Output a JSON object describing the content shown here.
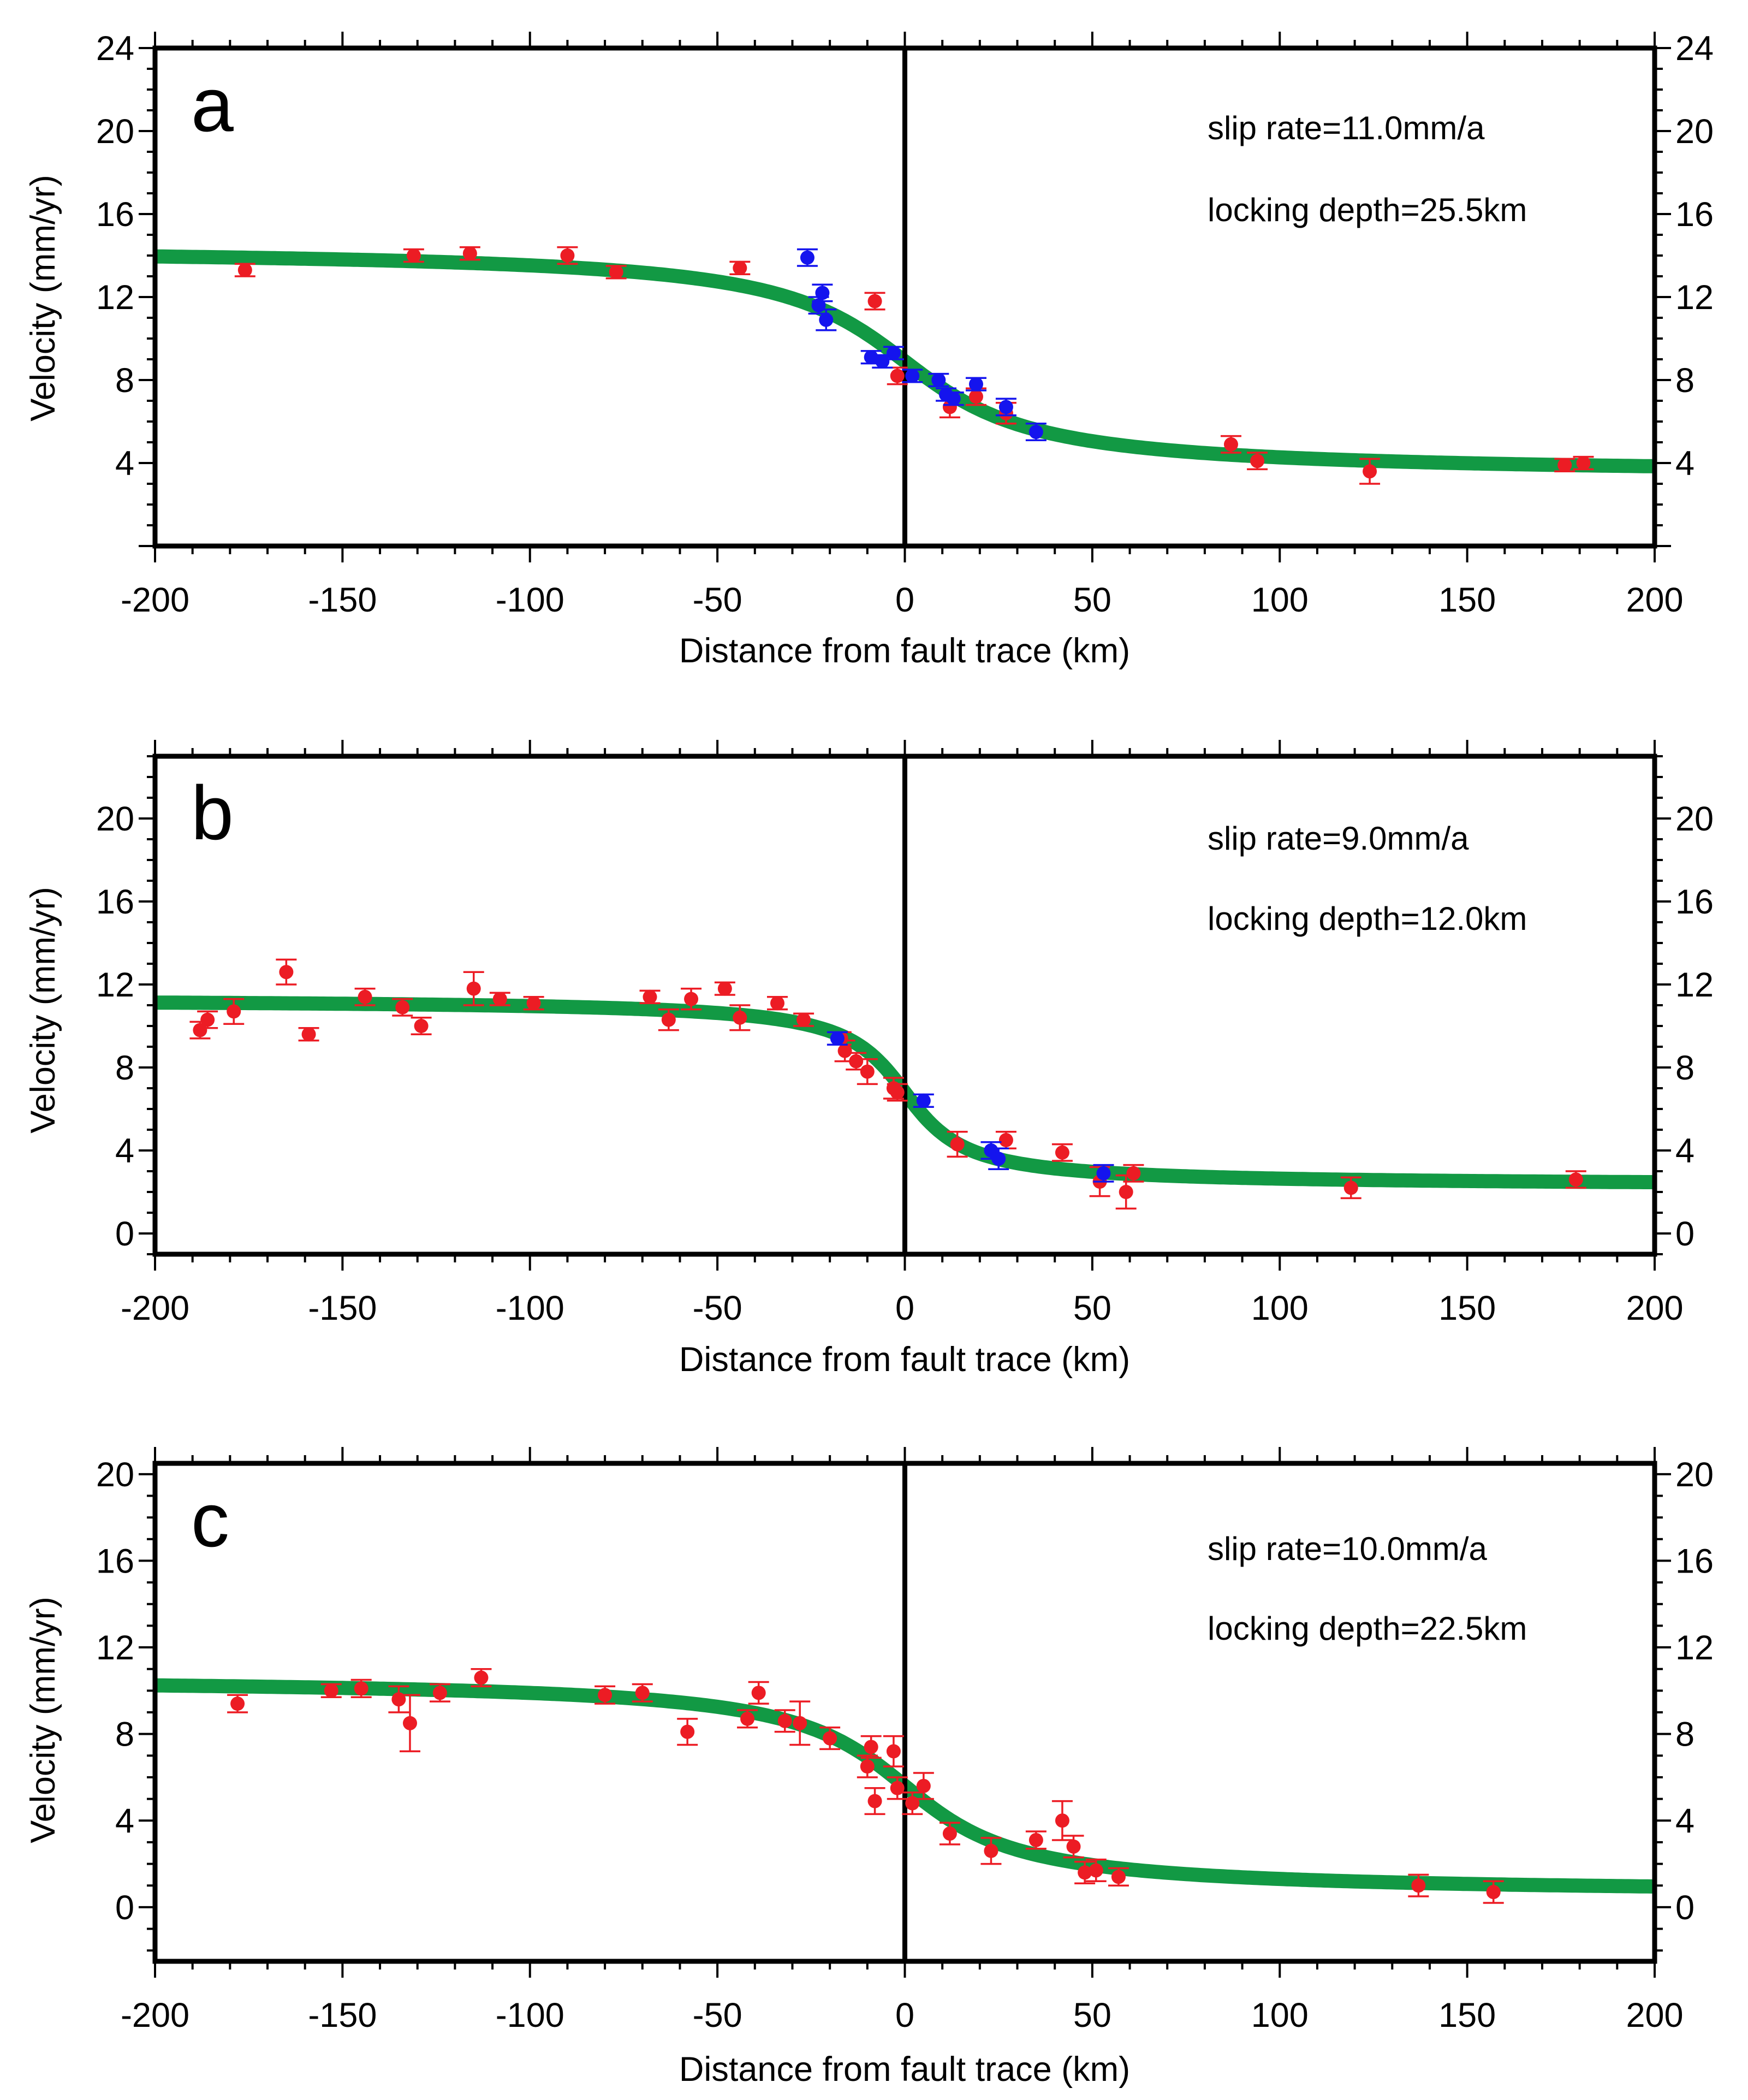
{
  "figure": {
    "x_tick_labels": [
      "-200",
      "-150",
      "-100",
      "-50",
      "0",
      "50",
      "100",
      "150",
      "200"
    ]
  },
  "chart_data": [
    {
      "type": "scatter",
      "panel": "a",
      "xlabel": "Distance from fault trace (km)",
      "ylabel": "Velocity (mm/yr)",
      "xlim": [
        -200,
        200
      ],
      "ylim": [
        0,
        24
      ],
      "xticks": [
        -200,
        -150,
        -100,
        -50,
        0,
        50,
        100,
        150,
        200
      ],
      "yticks": [
        4,
        8,
        12,
        16,
        20,
        24
      ],
      "y_tick_labels": [
        "4",
        "8",
        "12",
        "16",
        "20",
        "24"
      ],
      "annotations": [
        "slip rate=11.0mm/a",
        "locking depth=25.5km"
      ],
      "model": {
        "name": "Model fit",
        "color": "#129944",
        "slip_rate": 11.0,
        "locking_depth": 25.5,
        "offset": 8.9
      },
      "series": [
        {
          "name": "Red stations",
          "color": "#ec1c24",
          "points": [
            [
              -176,
              13.3,
              0.3
            ],
            [
              -131,
              14.0,
              0.3
            ],
            [
              -116,
              14.1,
              0.3
            ],
            [
              -90,
              14.0,
              0.4
            ],
            [
              -77,
              13.2,
              0.3
            ],
            [
              -44,
              13.4,
              0.3
            ],
            [
              -8,
              11.8,
              0.4
            ],
            [
              -2,
              8.2,
              0.4
            ],
            [
              12,
              6.7,
              0.5
            ],
            [
              19,
              7.2,
              0.4
            ],
            [
              27,
              6.4,
              0.5
            ],
            [
              87,
              4.9,
              0.4
            ],
            [
              94,
              4.1,
              0.4
            ],
            [
              124,
              3.6,
              0.6
            ],
            [
              176,
              3.9,
              0.3
            ],
            [
              181,
              4.0,
              0.3
            ]
          ]
        },
        {
          "name": "Blue stations",
          "color": "#1414ee",
          "points": [
            [
              -26,
              13.9,
              0.4
            ],
            [
              -23,
              11.6,
              0.4
            ],
            [
              -22,
              12.2,
              0.4
            ],
            [
              -21,
              10.9,
              0.5
            ],
            [
              -9,
              9.1,
              0.3
            ],
            [
              -6,
              8.9,
              0.3
            ],
            [
              -3,
              9.3,
              0.3
            ],
            [
              2,
              8.2,
              0.3
            ],
            [
              9,
              8.0,
              0.3
            ],
            [
              11,
              7.3,
              0.3
            ],
            [
              13,
              7.1,
              0.3
            ],
            [
              19,
              7.8,
              0.3
            ],
            [
              27,
              6.7,
              0.4
            ],
            [
              35,
              5.5,
              0.4
            ]
          ]
        }
      ]
    },
    {
      "type": "scatter",
      "panel": "b",
      "xlabel": "Distance from fault trace (km)",
      "ylabel": "Velocity (mm/yr)",
      "xlim": [
        -200,
        200
      ],
      "ylim": [
        -1,
        23
      ],
      "xticks": [
        -200,
        -150,
        -100,
        -50,
        0,
        50,
        100,
        150,
        200
      ],
      "yticks": [
        0,
        4,
        8,
        12,
        16,
        20
      ],
      "y_tick_labels": [
        "0",
        "4",
        "8",
        "12",
        "16",
        "20"
      ],
      "annotations": [
        "slip rate=9.0mm/a",
        "locking depth=12.0km"
      ],
      "model": {
        "name": "Model fit",
        "color": "#129944",
        "slip_rate": 9.0,
        "locking_depth": 12.0,
        "offset": 6.8
      },
      "series": [
        {
          "name": "Red stations",
          "color": "#ec1c24",
          "points": [
            [
              -188,
              9.8,
              0.4
            ],
            [
              -186,
              10.3,
              0.4
            ],
            [
              -179,
              10.7,
              0.6
            ],
            [
              -165,
              12.6,
              0.6
            ],
            [
              -159,
              9.6,
              0.3
            ],
            [
              -144,
              11.4,
              0.4
            ],
            [
              -134,
              10.9,
              0.4
            ],
            [
              -129,
              10.0,
              0.4
            ],
            [
              -115,
              11.8,
              0.8
            ],
            [
              -108,
              11.3,
              0.3
            ],
            [
              -99,
              11.1,
              0.3
            ],
            [
              -68,
              11.4,
              0.3
            ],
            [
              -63,
              10.3,
              0.5
            ],
            [
              -57,
              11.3,
              0.5
            ],
            [
              -48,
              11.8,
              0.3
            ],
            [
              -44,
              10.4,
              0.6
            ],
            [
              -34,
              11.1,
              0.3
            ],
            [
              -27,
              10.3,
              0.3
            ],
            [
              -17,
              9.4,
              0.3
            ],
            [
              -16,
              8.8,
              0.5
            ],
            [
              -13,
              8.3,
              0.4
            ],
            [
              -10,
              7.8,
              0.6
            ],
            [
              -3,
              7.0,
              0.5
            ],
            [
              -2,
              6.8,
              0.4
            ],
            [
              14,
              4.3,
              0.6
            ],
            [
              27,
              4.5,
              0.4
            ],
            [
              42,
              3.9,
              0.4
            ],
            [
              52,
              2.5,
              0.7
            ],
            [
              59,
              2.0,
              0.8
            ],
            [
              61,
              2.9,
              0.4
            ],
            [
              119,
              2.2,
              0.5
            ],
            [
              179,
              2.6,
              0.4
            ]
          ]
        },
        {
          "name": "Blue stations",
          "color": "#1414ee",
          "points": [
            [
              -18,
              9.4,
              0.3
            ],
            [
              5,
              6.4,
              0.3
            ],
            [
              23,
              4.0,
              0.4
            ],
            [
              25,
              3.6,
              0.5
            ],
            [
              53,
              2.9,
              0.4
            ]
          ]
        }
      ]
    },
    {
      "type": "scatter",
      "panel": "c",
      "xlabel": "Distance from fault trace (km)",
      "ylabel": "Velocity (mm/yr)",
      "xlim": [
        -200,
        200
      ],
      "ylim": [
        -2.5,
        20.5
      ],
      "xticks": [
        -200,
        -150,
        -100,
        -50,
        0,
        50,
        100,
        150,
        200
      ],
      "yticks": [
        0,
        4,
        8,
        12,
        16,
        20
      ],
      "y_tick_labels": [
        "0",
        "4",
        "8",
        "12",
        "16",
        "20"
      ],
      "annotations": [
        "slip rate=10.0mm/a",
        "locking depth=22.5km"
      ],
      "model": {
        "name": "Model fit",
        "color": "#129944",
        "slip_rate": 10.0,
        "locking_depth": 22.5,
        "offset": 5.6
      },
      "series": [
        {
          "name": "Red stations",
          "color": "#ec1c24",
          "points": [
            [
              -178,
              9.4,
              0.4
            ],
            [
              -153,
              10.0,
              0.3
            ],
            [
              -145,
              10.1,
              0.4
            ],
            [
              -135,
              9.6,
              0.6
            ],
            [
              -132,
              8.5,
              1.3
            ],
            [
              -124,
              9.9,
              0.4
            ],
            [
              -113,
              10.6,
              0.4
            ],
            [
              -80,
              9.8,
              0.4
            ],
            [
              -70,
              9.9,
              0.4
            ],
            [
              -58,
              8.1,
              0.6
            ],
            [
              -42,
              8.7,
              0.4
            ],
            [
              -39,
              9.9,
              0.5
            ],
            [
              -32,
              8.6,
              0.5
            ],
            [
              -28,
              8.5,
              1.0
            ],
            [
              -20,
              7.8,
              0.5
            ],
            [
              -10,
              6.5,
              0.5
            ],
            [
              -9,
              7.4,
              0.5
            ],
            [
              -8,
              4.9,
              0.6
            ],
            [
              -3,
              7.2,
              0.7
            ],
            [
              -2,
              5.5,
              0.5
            ],
            [
              2,
              4.8,
              0.5
            ],
            [
              5,
              5.6,
              0.6
            ],
            [
              12,
              3.4,
              0.5
            ],
            [
              23,
              2.6,
              0.6
            ],
            [
              35,
              3.1,
              0.4
            ],
            [
              42,
              4.0,
              0.9
            ],
            [
              45,
              2.8,
              0.5
            ],
            [
              48,
              1.6,
              0.5
            ],
            [
              51,
              1.7,
              0.5
            ],
            [
              57,
              1.4,
              0.4
            ],
            [
              137,
              1.0,
              0.5
            ],
            [
              157,
              0.7,
              0.5
            ]
          ]
        }
      ]
    }
  ]
}
